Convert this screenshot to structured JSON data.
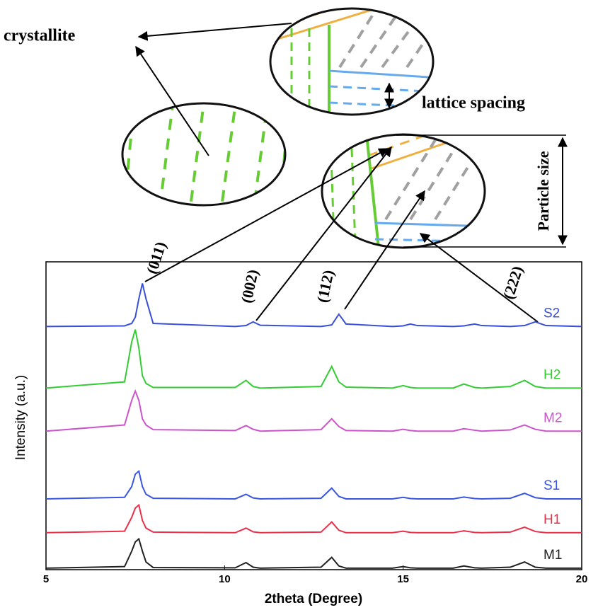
{
  "chart_data": {
    "type": "line",
    "xlabel": "2theta (Degree)",
    "ylabel": "Intensity (a.u.)",
    "xlim": [
      5,
      20
    ],
    "ylim": [
      0,
      100
    ],
    "xticks": [
      5,
      10,
      15,
      20
    ],
    "x": [
      5,
      7.2,
      7.4,
      7.5,
      7.6,
      7.7,
      7.8,
      8.0,
      10.3,
      10.6,
      10.8,
      11.0,
      12.7,
      13.0,
      13.2,
      13.4,
      14.7,
      15.0,
      15.2,
      15.4,
      16.4,
      16.7,
      17.0,
      17.2,
      18.0,
      18.4,
      18.7,
      19.0,
      20
    ],
    "series": [
      {
        "name": "S2",
        "color": "#3a4fd8",
        "values": [
          79,
          79.2,
          80,
          82,
          88,
          93,
          88,
          80,
          79,
          79.3,
          80.5,
          79.4,
          79,
          79.5,
          83,
          79.8,
          79,
          79.2,
          79.8,
          79.3,
          79,
          79.2,
          79.8,
          79.3,
          79,
          79.3,
          80.5,
          79.3,
          79
        ]
      },
      {
        "name": "H2",
        "color": "#33cc33",
        "values": [
          59,
          61,
          74,
          78,
          72,
          63,
          60.5,
          59.2,
          59.2,
          61.5,
          59.5,
          59,
          59.5,
          66,
          61,
          59.3,
          59,
          59.8,
          59.2,
          59,
          59,
          60.3,
          59.2,
          59,
          59.5,
          61.5,
          59.5,
          59,
          59
        ]
      },
      {
        "name": "M2",
        "color": "#cc55cc",
        "values": [
          45,
          47,
          55,
          58,
          55,
          49,
          47,
          45.5,
          45.2,
          46.8,
          45.6,
          45,
          45.5,
          49,
          46.5,
          45.2,
          45,
          45.6,
          45.2,
          45,
          45,
          45.8,
          45.3,
          45,
          45.4,
          47,
          45.6,
          45,
          45
        ]
      },
      {
        "name": "S1",
        "color": "#3a55e0",
        "values": [
          23,
          23.5,
          27,
          31,
          32,
          27,
          24.5,
          23.2,
          23,
          24.5,
          23.3,
          23,
          23.2,
          26.5,
          23.8,
          23,
          23,
          23.5,
          23.1,
          23,
          23,
          23.6,
          23.1,
          23,
          23.2,
          24.8,
          23.4,
          23,
          23
        ]
      },
      {
        "name": "H1",
        "color": "#e8304a",
        "values": [
          12,
          12.5,
          17,
          20,
          21,
          16,
          13.5,
          12.2,
          12,
          13.5,
          12.3,
          12,
          12.2,
          15.5,
          12.8,
          12,
          12,
          12.5,
          12.1,
          12,
          12,
          12.6,
          12.1,
          12,
          12.2,
          13.8,
          12.4,
          12,
          12
        ]
      },
      {
        "name": "M1",
        "color": "#222222",
        "values": [
          0.5,
          1,
          6,
          9,
          10,
          6,
          2.5,
          0.7,
          0.6,
          2.3,
          0.8,
          0.5,
          0.8,
          4,
          1.2,
          0.5,
          0.5,
          1,
          0.6,
          0.5,
          0.5,
          1.2,
          0.6,
          0.5,
          0.8,
          2.5,
          0.8,
          0.5,
          0.5
        ]
      }
    ],
    "annotations": [
      "(011)",
      "(002)",
      "(112)",
      "(222)",
      "crystallite",
      "lattice spacing",
      "Particle size"
    ]
  }
}
